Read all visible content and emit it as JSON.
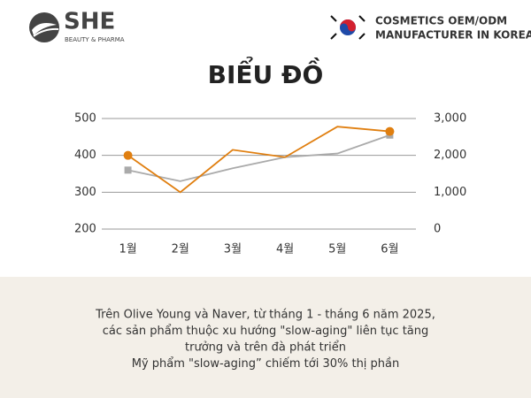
{
  "header": {
    "brand": "SHE",
    "brand_sub": "BEAUTY & PHARMA",
    "tagline_1": "COSMETICS OEM/ODM",
    "tagline_2": "MANUFACTURER IN KOREA"
  },
  "chart_data": {
    "type": "line",
    "title": "BIỂU ĐỒ",
    "categories": [
      "1월",
      "2월",
      "3월",
      "4월",
      "5월",
      "6월"
    ],
    "series": [
      {
        "color": "#e07f10",
        "marker": "circle",
        "values": [
          400,
          300,
          415,
          395,
          478,
          465
        ]
      },
      {
        "color": "#aaaaaa",
        "marker": "square",
        "axis": "y2",
        "values": [
          1600,
          1300,
          1650,
          1950,
          2050,
          2550
        ]
      }
    ],
    "ylim": [
      200,
      500
    ],
    "yticks": [
      200,
      300,
      400,
      500
    ],
    "y2lim": [
      0,
      3000
    ],
    "y2ticks": [
      0,
      {
        "value": 1000,
        "label": "1,000"
      },
      {
        "value": 2000,
        "label": "2,000"
      },
      {
        "value": 3000,
        "label": "3,000"
      }
    ],
    "grid": true
  },
  "caption": [
    "Trên Olive Young và Naver, từ tháng 1 - tháng 6 năm 2025,",
    "các sản phẩm thuộc xu hướng \"slow-aging\" liên tục tăng",
    "trưởng và trên đà phát triển",
    "Mỹ phẩm \"slow-aging” chiếm tới 30% thị phần"
  ]
}
